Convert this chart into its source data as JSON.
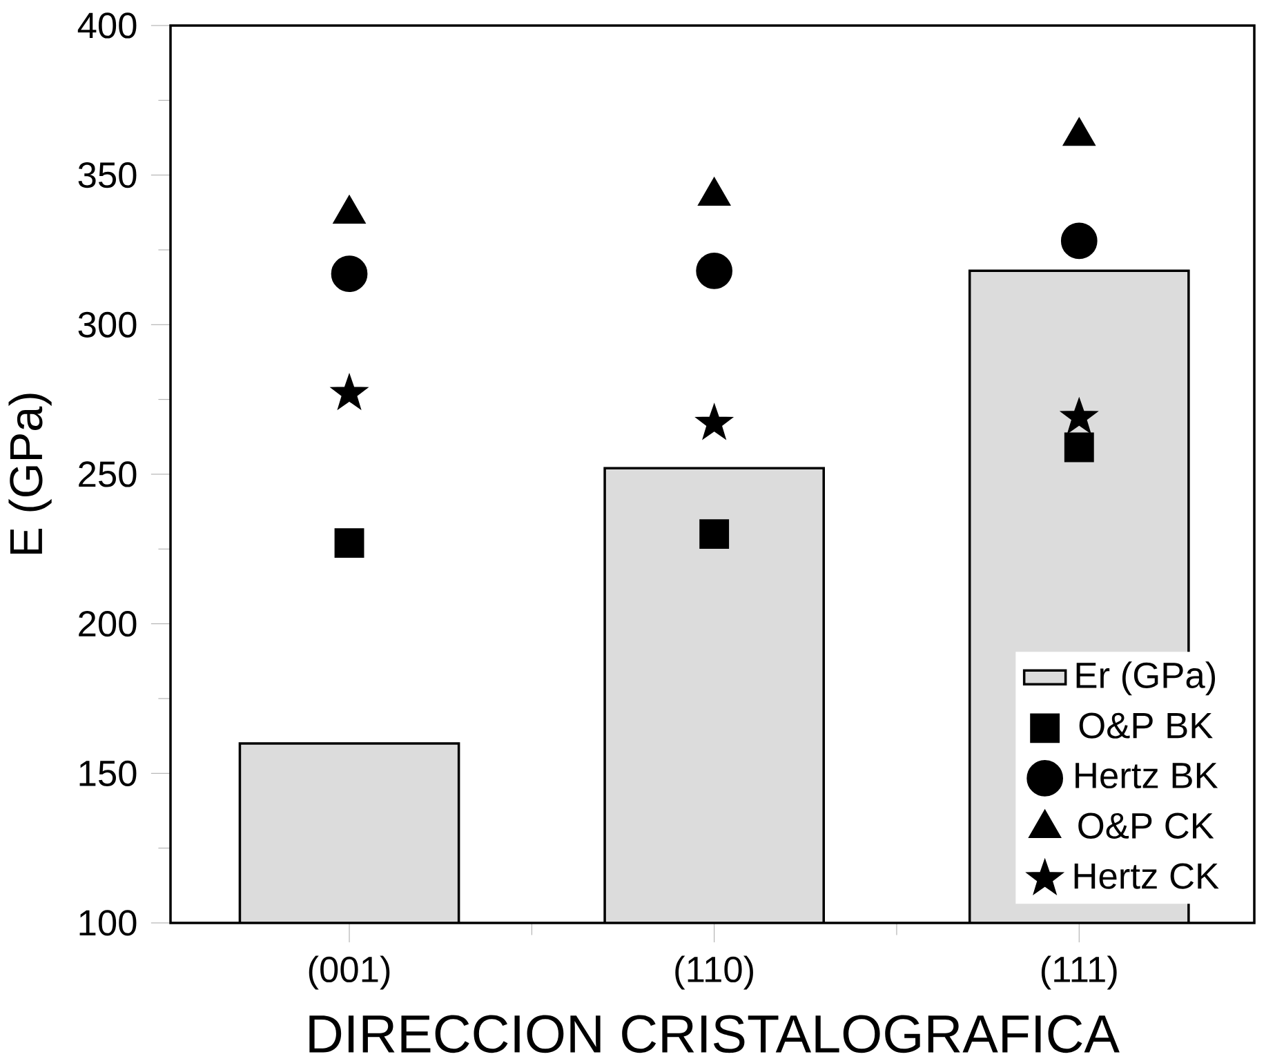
{
  "chart_data": {
    "type": "bar",
    "xlabel": "DIRECCION CRISTALOGRAFICA",
    "ylabel": "E (GPa)",
    "categories": [
      "(001)",
      "(110)",
      "(111)"
    ],
    "ylim": [
      100,
      400
    ],
    "yticks": [
      100,
      150,
      200,
      250,
      300,
      350,
      400
    ],
    "legend": "bottom right",
    "series": [
      {
        "name": "Er (GPa)",
        "color": "#dcdcdc",
        "values": [
          160,
          252,
          318
        ]
      },
      {
        "name": "O&P BK",
        "type": "scatter",
        "marker": "square",
        "color": "#000000",
        "values": [
          227,
          230,
          259
        ]
      },
      {
        "name": "Hertz BK",
        "type": "scatter",
        "marker": "circle",
        "color": "#000000",
        "values": [
          317,
          318,
          328
        ]
      },
      {
        "name": "O&P CK",
        "type": "scatter",
        "marker": "triangle",
        "color": "#000000",
        "values": [
          337,
          343,
          363
        ]
      },
      {
        "name": "Hertz CK",
        "type": "scatter",
        "marker": "star",
        "color": "#000000",
        "values": [
          277,
          267,
          269
        ]
      }
    ]
  }
}
